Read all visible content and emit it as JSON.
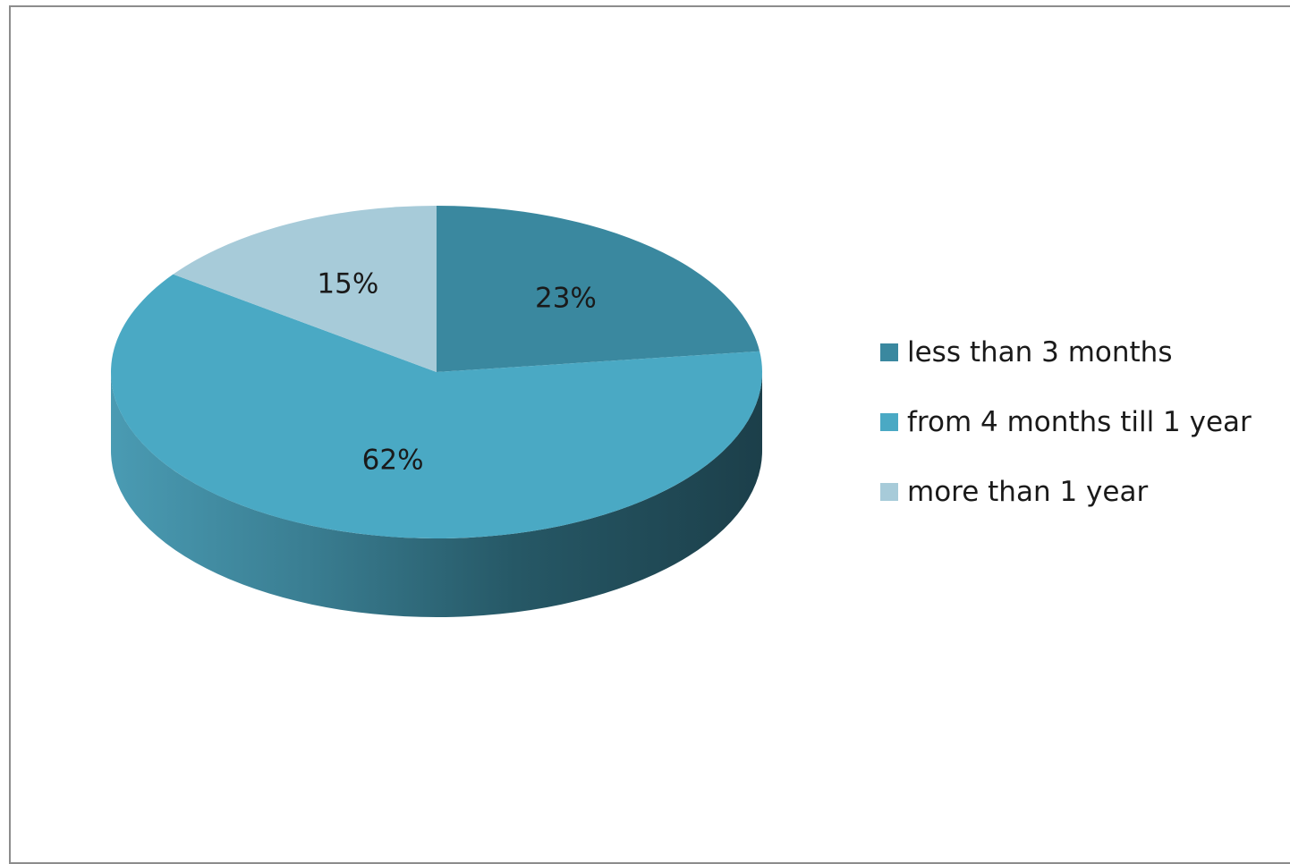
{
  "chart_data": {
    "type": "pie",
    "categories": [
      "less than 3 months",
      "from 4 months till 1 year",
      "more than 1 year"
    ],
    "values": [
      23,
      62,
      15
    ],
    "labels": [
      "23%",
      "62%",
      "15%"
    ],
    "colors": [
      "#3a889f",
      "#4aa9c4",
      "#a7cbd9"
    ],
    "style": "3d",
    "legend_position": "right"
  }
}
